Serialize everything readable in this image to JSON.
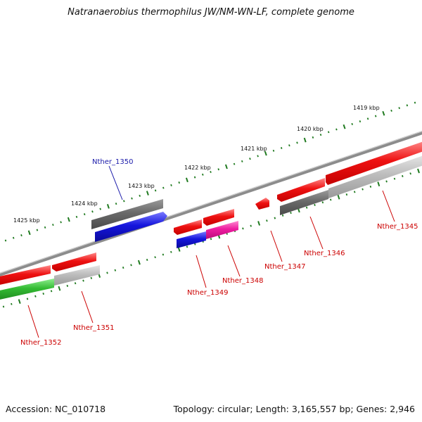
{
  "title": "Natranaerobius thermophilus JW/NM-WN-LF, complete genome",
  "footer": {
    "accession": "Accession: NC_010718",
    "info": "Topology: circular; Length: 3,165,557 bp; Genes: 2,946"
  },
  "scale_labels": [
    "1419 kbp",
    "1420 kbp",
    "1421 kbp",
    "1422 kbp",
    "1423 kbp",
    "1424 kbp",
    "1425 kbp"
  ],
  "gene_labels": {
    "nther_1345": "Nther_1345",
    "nther_1346": "Nther_1346",
    "nther_1347": "Nther_1347",
    "nther_1348": "Nther_1348",
    "nther_1349": "Nther_1349",
    "nther_1350": "Nther_1350",
    "nther_1351": "Nther_1351",
    "nther_1352": "Nther_1352"
  },
  "colors": {
    "backbone": "#8c8c8c",
    "scale_ticks": "#1f7a1f",
    "label_red": "#cc0000",
    "label_blue": "#1a1aaa",
    "gene_red": "#ee1111",
    "gene_blue": "#1515dd",
    "gene_gray_dark": "#6a6a6a",
    "gene_gray_light": "#bdbdbd",
    "gene_magenta": "#ee1ca0",
    "gene_green": "#33bb33"
  }
}
